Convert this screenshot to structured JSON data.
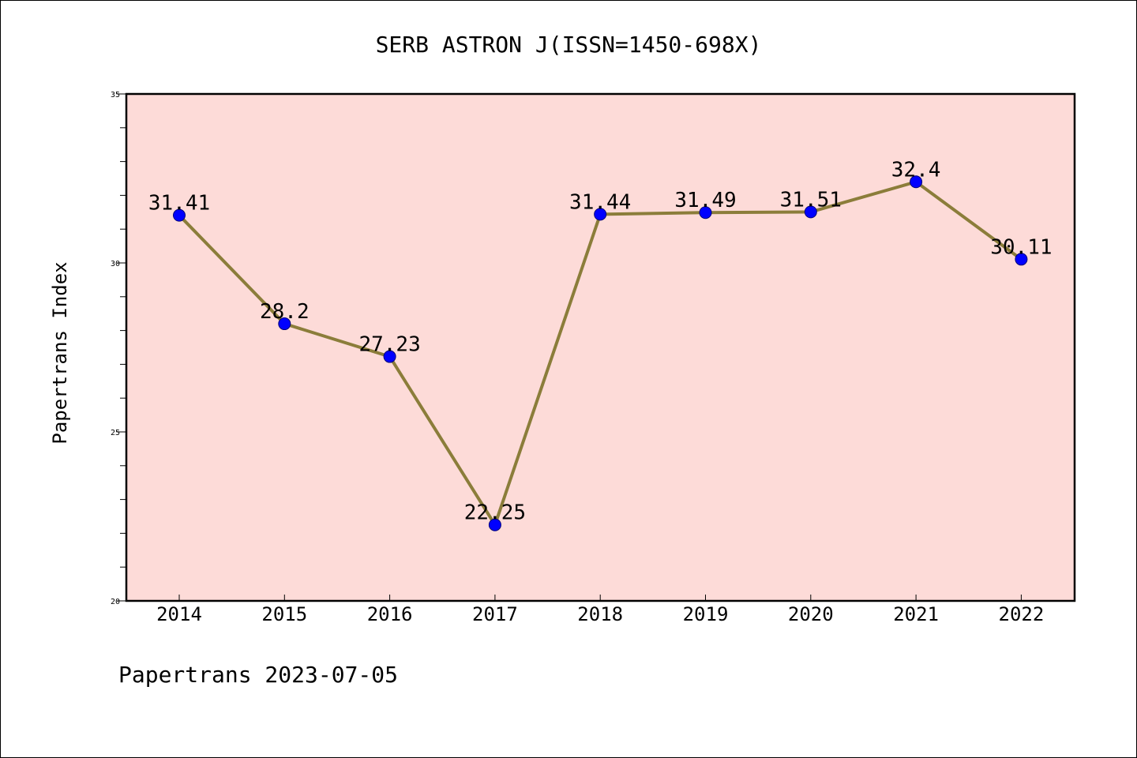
{
  "chart_data": {
    "type": "line",
    "title": "SERB ASTRON J(ISSN=1450-698X)",
    "xlabel": "",
    "ylabel": "Papertrans Index",
    "footer": "Papertrans 2023-07-05",
    "categories": [
      "2014",
      "2015",
      "2016",
      "2017",
      "2018",
      "2019",
      "2020",
      "2021",
      "2022"
    ],
    "values": [
      31.41,
      28.2,
      27.23,
      22.25,
      31.44,
      31.49,
      31.51,
      32.4,
      30.11
    ],
    "data_labels": [
      "31.41",
      "28.2",
      "27.23",
      "22.25",
      "31.44",
      "31.49",
      "31.51",
      "32.4",
      "30.11"
    ],
    "ylim": [
      20,
      35
    ],
    "yticks": [
      20,
      25,
      30,
      35
    ],
    "ytick_labels": [
      "20",
      "25",
      "30",
      "35"
    ],
    "grid": false,
    "colors": {
      "plot_background": "#fddbd8",
      "line": "#8b7d3a",
      "marker": "#0000ff",
      "marker_edge": "#00007a"
    }
  }
}
